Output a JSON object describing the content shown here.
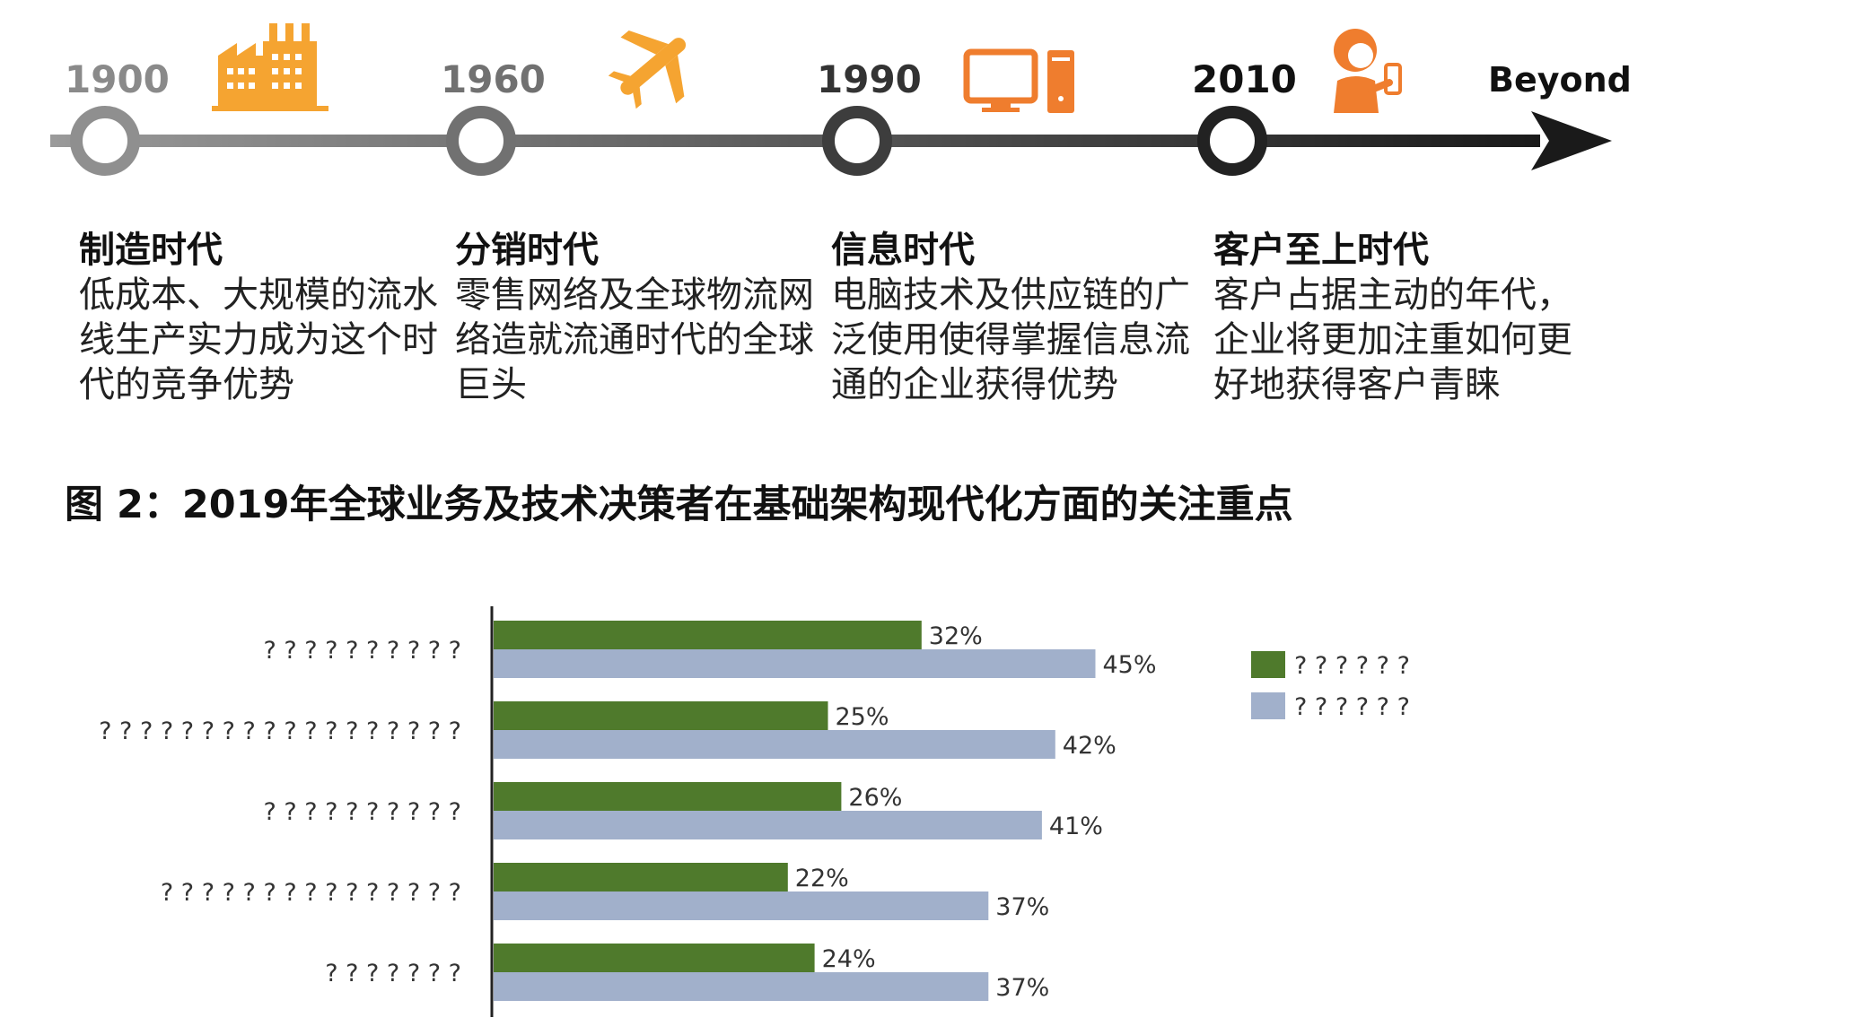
{
  "timeline": {
    "milestones": [
      {
        "year": "1900",
        "title": "制造时代",
        "text": "低成本、大规模的流水线生产实力成为这个时代的竞争优势",
        "icon": "factory-icon"
      },
      {
        "year": "1960",
        "title": "分销时代",
        "text": "零售网络及全球物流网络造就流通时代的全球巨头",
        "icon": "airplane-icon"
      },
      {
        "year": "1990",
        "title": "信息时代",
        "text": "电脑技术及供应链的广泛使用使得掌握信息流通的企业获得优势",
        "icon": "computer-icon"
      },
      {
        "year": "2010",
        "title": "客户至上时代",
        "text": "客户占据主动的年代，企业将更加注重如何更好地获得客户青睐",
        "icon": "person-phone-icon"
      }
    ],
    "end_label": "Beyond"
  },
  "figure": {
    "title": "图 2：2019年全球业务及技术决策者在基础架构现代化方面的关注重点"
  },
  "colors": {
    "icon_orange": "#f5a431",
    "icon_dark_orange": "#ef7d2e",
    "series_green": "#4f7a2c",
    "series_blue": "#a1b0cb"
  },
  "chart_data": {
    "type": "bar",
    "orientation": "horizontal",
    "categories": [
      "? ? ? ? ? ? ? ? ? ?",
      "? ? ? ? ? ? ? ? ? ? ? ? ? ? ? ? ? ?",
      "? ? ? ? ? ? ? ? ? ?",
      "? ? ? ? ? ? ? ? ? ? ? ? ? ? ?",
      "? ? ? ? ? ? ?"
    ],
    "series": [
      {
        "name": "? ? ? ? ? ?",
        "values": [
          32,
          25,
          26,
          22,
          24
        ],
        "labels": [
          "32%",
          "25%",
          "26%",
          "22%",
          "24%"
        ],
        "color": "#4f7a2c"
      },
      {
        "name": "? ? ? ? ? ?",
        "values": [
          45,
          42,
          41,
          37,
          37
        ],
        "labels": [
          "45%",
          "42%",
          "41%",
          "37%",
          "37%"
        ],
        "color": "#a1b0cb"
      }
    ],
    "xlim": [
      0,
      100
    ],
    "grid": false,
    "legend": "right"
  }
}
